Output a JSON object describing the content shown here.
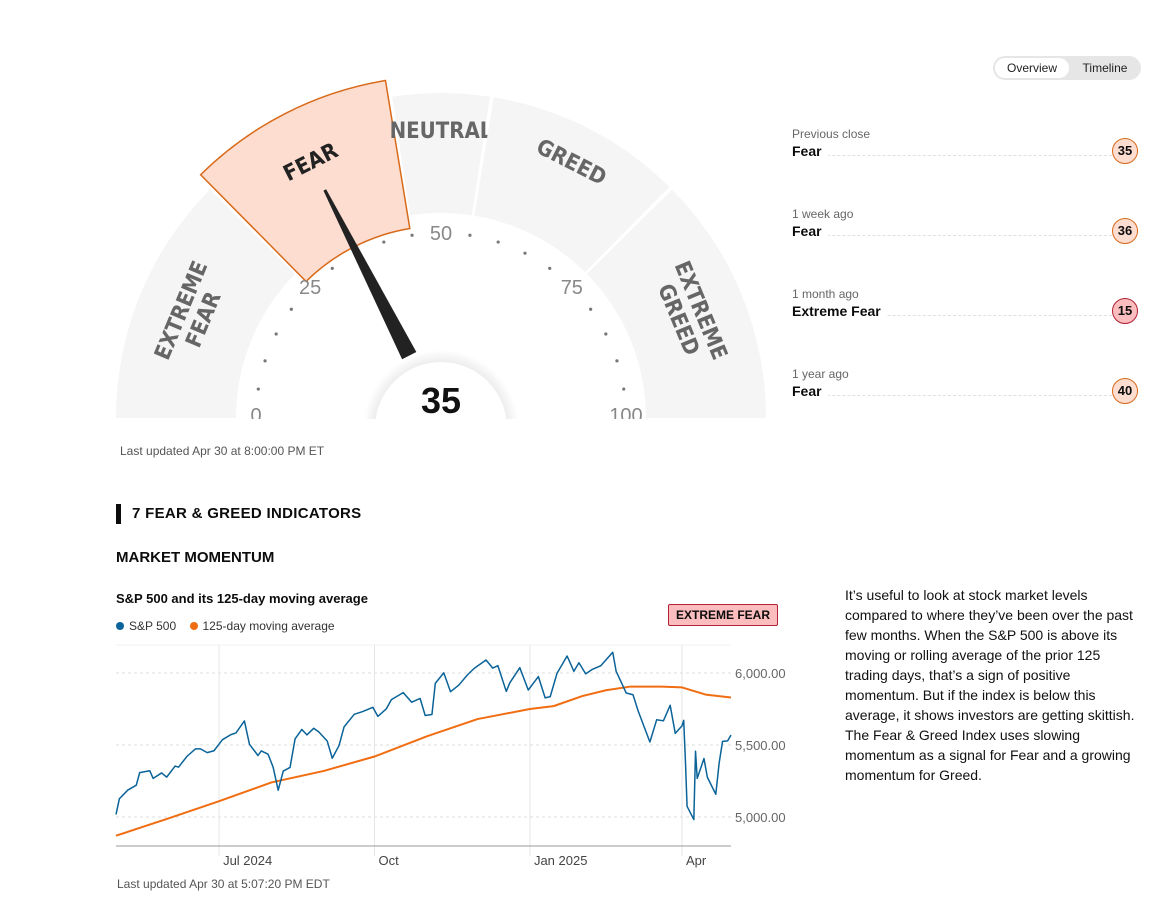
{
  "toggle": {
    "overview": "Overview",
    "timeline": "Timeline",
    "active": "Overview"
  },
  "gauge": {
    "value": 35,
    "current_rating": "Fear",
    "segments": [
      {
        "label": "EXTREME FEAR",
        "lines": [
          "EXTREME",
          "FEAR"
        ],
        "from": 0,
        "to": 25
      },
      {
        "label": "FEAR",
        "lines": [
          "FEAR"
        ],
        "from": 25,
        "to": 45,
        "active": true
      },
      {
        "label": "NEUTRAL",
        "lines": [
          "NEUTRAL"
        ],
        "from": 45,
        "to": 55
      },
      {
        "label": "GREED",
        "lines": [
          "GREED"
        ],
        "from": 55,
        "to": 75
      },
      {
        "label": "EXTREME GREED",
        "lines": [
          "EXTREME",
          "GREED"
        ],
        "from": 75,
        "to": 100
      }
    ],
    "ticks": [
      "0",
      "25",
      "50",
      "75",
      "100"
    ],
    "last_updated": "Last updated Apr 30 at 8:00:00 PM ET",
    "colors": {
      "active_fill": "#fdddd0",
      "active_stroke": "#d86a1a",
      "segment": "#f5f5f5",
      "needle": "#222222"
    }
  },
  "history": [
    {
      "period": "Previous close",
      "rating": "Fear",
      "value": "35"
    },
    {
      "period": "1 week ago",
      "rating": "Fear",
      "value": "36"
    },
    {
      "period": "1 month ago",
      "rating": "Extreme Fear",
      "value": "15"
    },
    {
      "period": "1 year ago",
      "rating": "Fear",
      "value": "40"
    }
  ],
  "indicators": {
    "heading": "7 FEAR & GREED INDICATORS",
    "section": "MARKET MOMENTUM",
    "status": "EXTREME FEAR",
    "description": "It’s useful to look at stock market levels compared to where they’ve been over the past few months. When the S&P 500 is above its moving or rolling average of the prior 125 trading days, that’s a sign of positive momentum. But if the index is below this average, it shows investors are getting skittish. The Fear & Greed Index uses slowing momentum as a signal for Fear and a growing momentum for Greed."
  },
  "chart_data": {
    "type": "line",
    "title": "S&P 500 and its 125-day moving average",
    "x_ticks": [
      {
        "label": "Jul 2024",
        "date": "2024-07-01"
      },
      {
        "label": "Oct",
        "date": "2024-10-01"
      },
      {
        "label": "Jan 2025",
        "date": "2025-01-01"
      },
      {
        "label": "Apr",
        "date": "2025-04-01"
      }
    ],
    "y_ticks": [
      {
        "label": "5,000.00",
        "value": 5000
      },
      {
        "label": "5,500.00",
        "value": 5500
      },
      {
        "label": "6,000.00",
        "value": 6000
      }
    ],
    "xlim": [
      "2024-05-01",
      "2025-04-30"
    ],
    "ylim": [
      4800,
      6200
    ],
    "grid": true,
    "legend": "top-left",
    "series": [
      {
        "name": "S&P 500",
        "color": "#0a6399",
        "points": [
          [
            "2024-05-01",
            5018
          ],
          [
            "2024-05-03",
            5127
          ],
          [
            "2024-05-08",
            5187
          ],
          [
            "2024-05-13",
            5221
          ],
          [
            "2024-05-15",
            5308
          ],
          [
            "2024-05-21",
            5321
          ],
          [
            "2024-05-23",
            5268
          ],
          [
            "2024-05-28",
            5306
          ],
          [
            "2024-05-31",
            5277
          ],
          [
            "2024-06-05",
            5354
          ],
          [
            "2024-06-07",
            5346
          ],
          [
            "2024-06-12",
            5421
          ],
          [
            "2024-06-17",
            5473
          ],
          [
            "2024-06-20",
            5473
          ],
          [
            "2024-06-24",
            5447
          ],
          [
            "2024-06-28",
            5460
          ],
          [
            "2024-07-03",
            5537
          ],
          [
            "2024-07-08",
            5572
          ],
          [
            "2024-07-11",
            5584
          ],
          [
            "2024-07-16",
            5667
          ],
          [
            "2024-07-19",
            5505
          ],
          [
            "2024-07-24",
            5427
          ],
          [
            "2024-07-26",
            5459
          ],
          [
            "2024-07-30",
            5436
          ],
          [
            "2024-08-02",
            5346
          ],
          [
            "2024-08-05",
            5186
          ],
          [
            "2024-08-08",
            5319
          ],
          [
            "2024-08-12",
            5344
          ],
          [
            "2024-08-15",
            5543
          ],
          [
            "2024-08-19",
            5608
          ],
          [
            "2024-08-22",
            5570
          ],
          [
            "2024-08-26",
            5616
          ],
          [
            "2024-08-29",
            5591
          ],
          [
            "2024-09-03",
            5528
          ],
          [
            "2024-09-06",
            5408
          ],
          [
            "2024-09-10",
            5496
          ],
          [
            "2024-09-13",
            5626
          ],
          [
            "2024-09-19",
            5713
          ],
          [
            "2024-09-24",
            5732
          ],
          [
            "2024-09-30",
            5762
          ],
          [
            "2024-10-03",
            5699
          ],
          [
            "2024-10-08",
            5751
          ],
          [
            "2024-10-11",
            5815
          ],
          [
            "2024-10-18",
            5864
          ],
          [
            "2024-10-23",
            5797
          ],
          [
            "2024-10-28",
            5823
          ],
          [
            "2024-10-31",
            5705
          ],
          [
            "2024-11-04",
            5712
          ],
          [
            "2024-11-06",
            5929
          ],
          [
            "2024-11-11",
            6001
          ],
          [
            "2024-11-15",
            5870
          ],
          [
            "2024-11-20",
            5917
          ],
          [
            "2024-11-25",
            5987
          ],
          [
            "2024-11-29",
            6032
          ],
          [
            "2024-12-06",
            6090
          ],
          [
            "2024-12-10",
            6034
          ],
          [
            "2024-12-13",
            6051
          ],
          [
            "2024-12-18",
            5872
          ],
          [
            "2024-12-20",
            5930
          ],
          [
            "2024-12-26",
            6037
          ],
          [
            "2024-12-31",
            5882
          ],
          [
            "2025-01-06",
            5975
          ],
          [
            "2025-01-10",
            5827
          ],
          [
            "2025-01-13",
            5836
          ],
          [
            "2025-01-17",
            5997
          ],
          [
            "2025-01-23",
            6118
          ],
          [
            "2025-01-27",
            6012
          ],
          [
            "2025-01-30",
            6071
          ],
          [
            "2025-02-03",
            5994
          ],
          [
            "2025-02-07",
            6026
          ],
          [
            "2025-02-12",
            6051
          ],
          [
            "2025-02-19",
            6144
          ],
          [
            "2025-02-21",
            6013
          ],
          [
            "2025-02-27",
            5861
          ],
          [
            "2025-03-03",
            5849
          ],
          [
            "2025-03-06",
            5738
          ],
          [
            "2025-03-10",
            5614
          ],
          [
            "2025-03-13",
            5521
          ],
          [
            "2025-03-17",
            5675
          ],
          [
            "2025-03-21",
            5668
          ],
          [
            "2025-03-25",
            5776
          ],
          [
            "2025-03-28",
            5581
          ],
          [
            "2025-04-01",
            5633
          ],
          [
            "2025-04-02",
            5671
          ],
          [
            "2025-04-03",
            5397
          ],
          [
            "2025-04-04",
            5074
          ],
          [
            "2025-04-08",
            4982
          ],
          [
            "2025-04-09",
            5457
          ],
          [
            "2025-04-10",
            5268
          ],
          [
            "2025-04-14",
            5406
          ],
          [
            "2025-04-16",
            5276
          ],
          [
            "2025-04-21",
            5158
          ],
          [
            "2025-04-23",
            5376
          ],
          [
            "2025-04-25",
            5525
          ],
          [
            "2025-04-28",
            5529
          ],
          [
            "2025-04-30",
            5569
          ]
        ]
      },
      {
        "name": "125-day moving average",
        "color": "#f06d12",
        "points": [
          [
            "2024-05-01",
            4870
          ],
          [
            "2024-06-01",
            4990
          ],
          [
            "2024-07-01",
            5110
          ],
          [
            "2024-08-01",
            5240
          ],
          [
            "2024-09-01",
            5320
          ],
          [
            "2024-10-01",
            5420
          ],
          [
            "2024-11-01",
            5560
          ],
          [
            "2024-12-01",
            5680
          ],
          [
            "2025-01-01",
            5750
          ],
          [
            "2025-01-15",
            5770
          ],
          [
            "2025-02-01",
            5840
          ],
          [
            "2025-02-15",
            5880
          ],
          [
            "2025-03-01",
            5905
          ],
          [
            "2025-03-20",
            5905
          ],
          [
            "2025-04-01",
            5900
          ],
          [
            "2025-04-15",
            5850
          ],
          [
            "2025-04-30",
            5830
          ]
        ]
      }
    ],
    "last_updated": "Last updated Apr 30 at 5:07:20 PM EDT"
  }
}
